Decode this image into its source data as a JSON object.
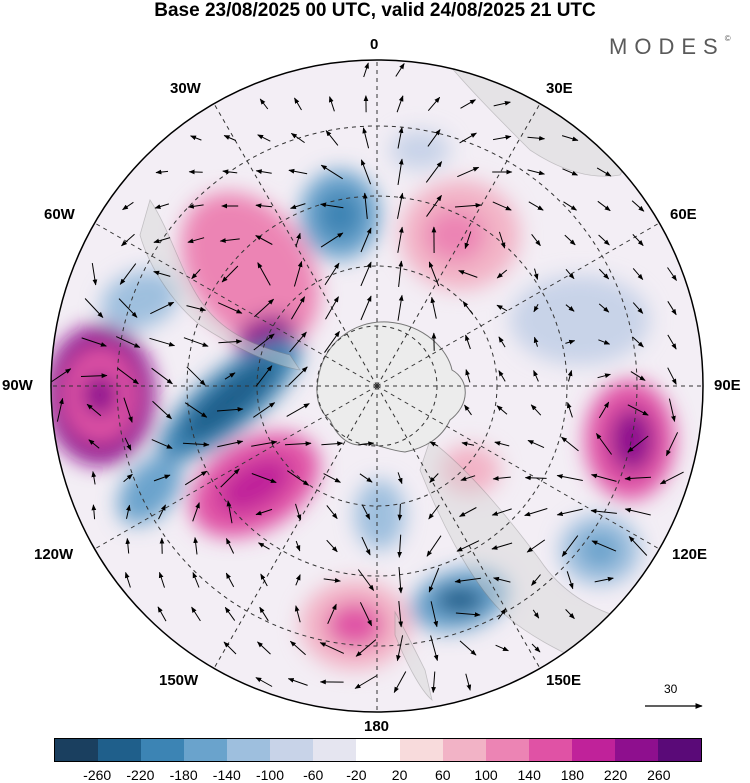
{
  "title": "Base 23/08/2025 00 UTC, valid 24/08/2025 21 UTC",
  "brand": "MODES",
  "brand_mark": "©",
  "longitude_labels": {
    "lon_0": "0",
    "lon_30e": "30E",
    "lon_60e": "60E",
    "lon_90e": "90E",
    "lon_120e": "120E",
    "lon_150e": "150E",
    "lon_180": "180",
    "lon_150w": "150W",
    "lon_120w": "120W",
    "lon_90w": "90W",
    "lon_60w": "60W",
    "lon_30w": "30W"
  },
  "vector_scale_label": "30",
  "colorbar": {
    "colors": [
      "#1a3f5f",
      "#1f5f8b",
      "#3c84b4",
      "#6aa3cc",
      "#9ebfde",
      "#c8d3e8",
      "#e5e5f0",
      "#ffffff",
      "#f8dbdc",
      "#f2b3c6",
      "#ec84b4",
      "#e052a5",
      "#c0229a",
      "#8e0f8e",
      "#5a0a78"
    ],
    "tick_labels": [
      "-260",
      "-220",
      "-180",
      "-140",
      "-100",
      "-60",
      "-20",
      "20",
      "60",
      "100",
      "140",
      "180",
      "220",
      "260"
    ]
  }
}
